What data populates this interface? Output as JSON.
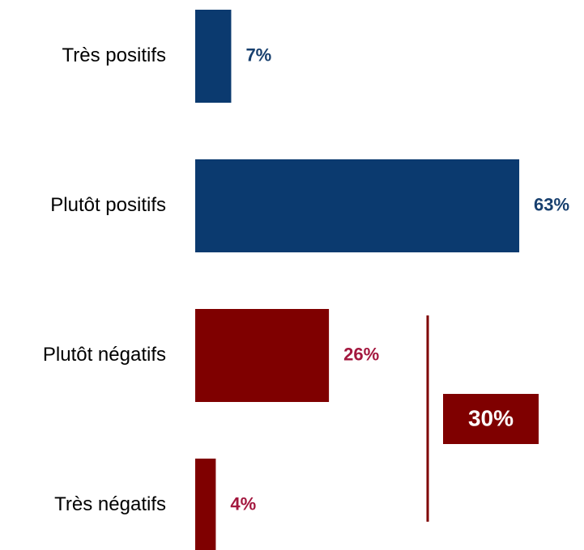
{
  "chart_data": {
    "type": "bar",
    "orientation": "horizontal",
    "categories": [
      "Très positifs",
      "Plutôt positifs",
      "Plutôt négatifs",
      "Très négatifs"
    ],
    "values": [
      7,
      63,
      26,
      4
    ],
    "value_labels": [
      "7%",
      "63%",
      "26%",
      "4%"
    ],
    "colors": [
      "#0b3a6f",
      "#0b3a6f",
      "#7f0000",
      "#7f0000"
    ],
    "value_label_colors": [
      "#173f6e",
      "#173f6e",
      "#a3173e",
      "#a3173e"
    ],
    "annotation": {
      "text": "30%",
      "color": "#7f0000"
    }
  }
}
